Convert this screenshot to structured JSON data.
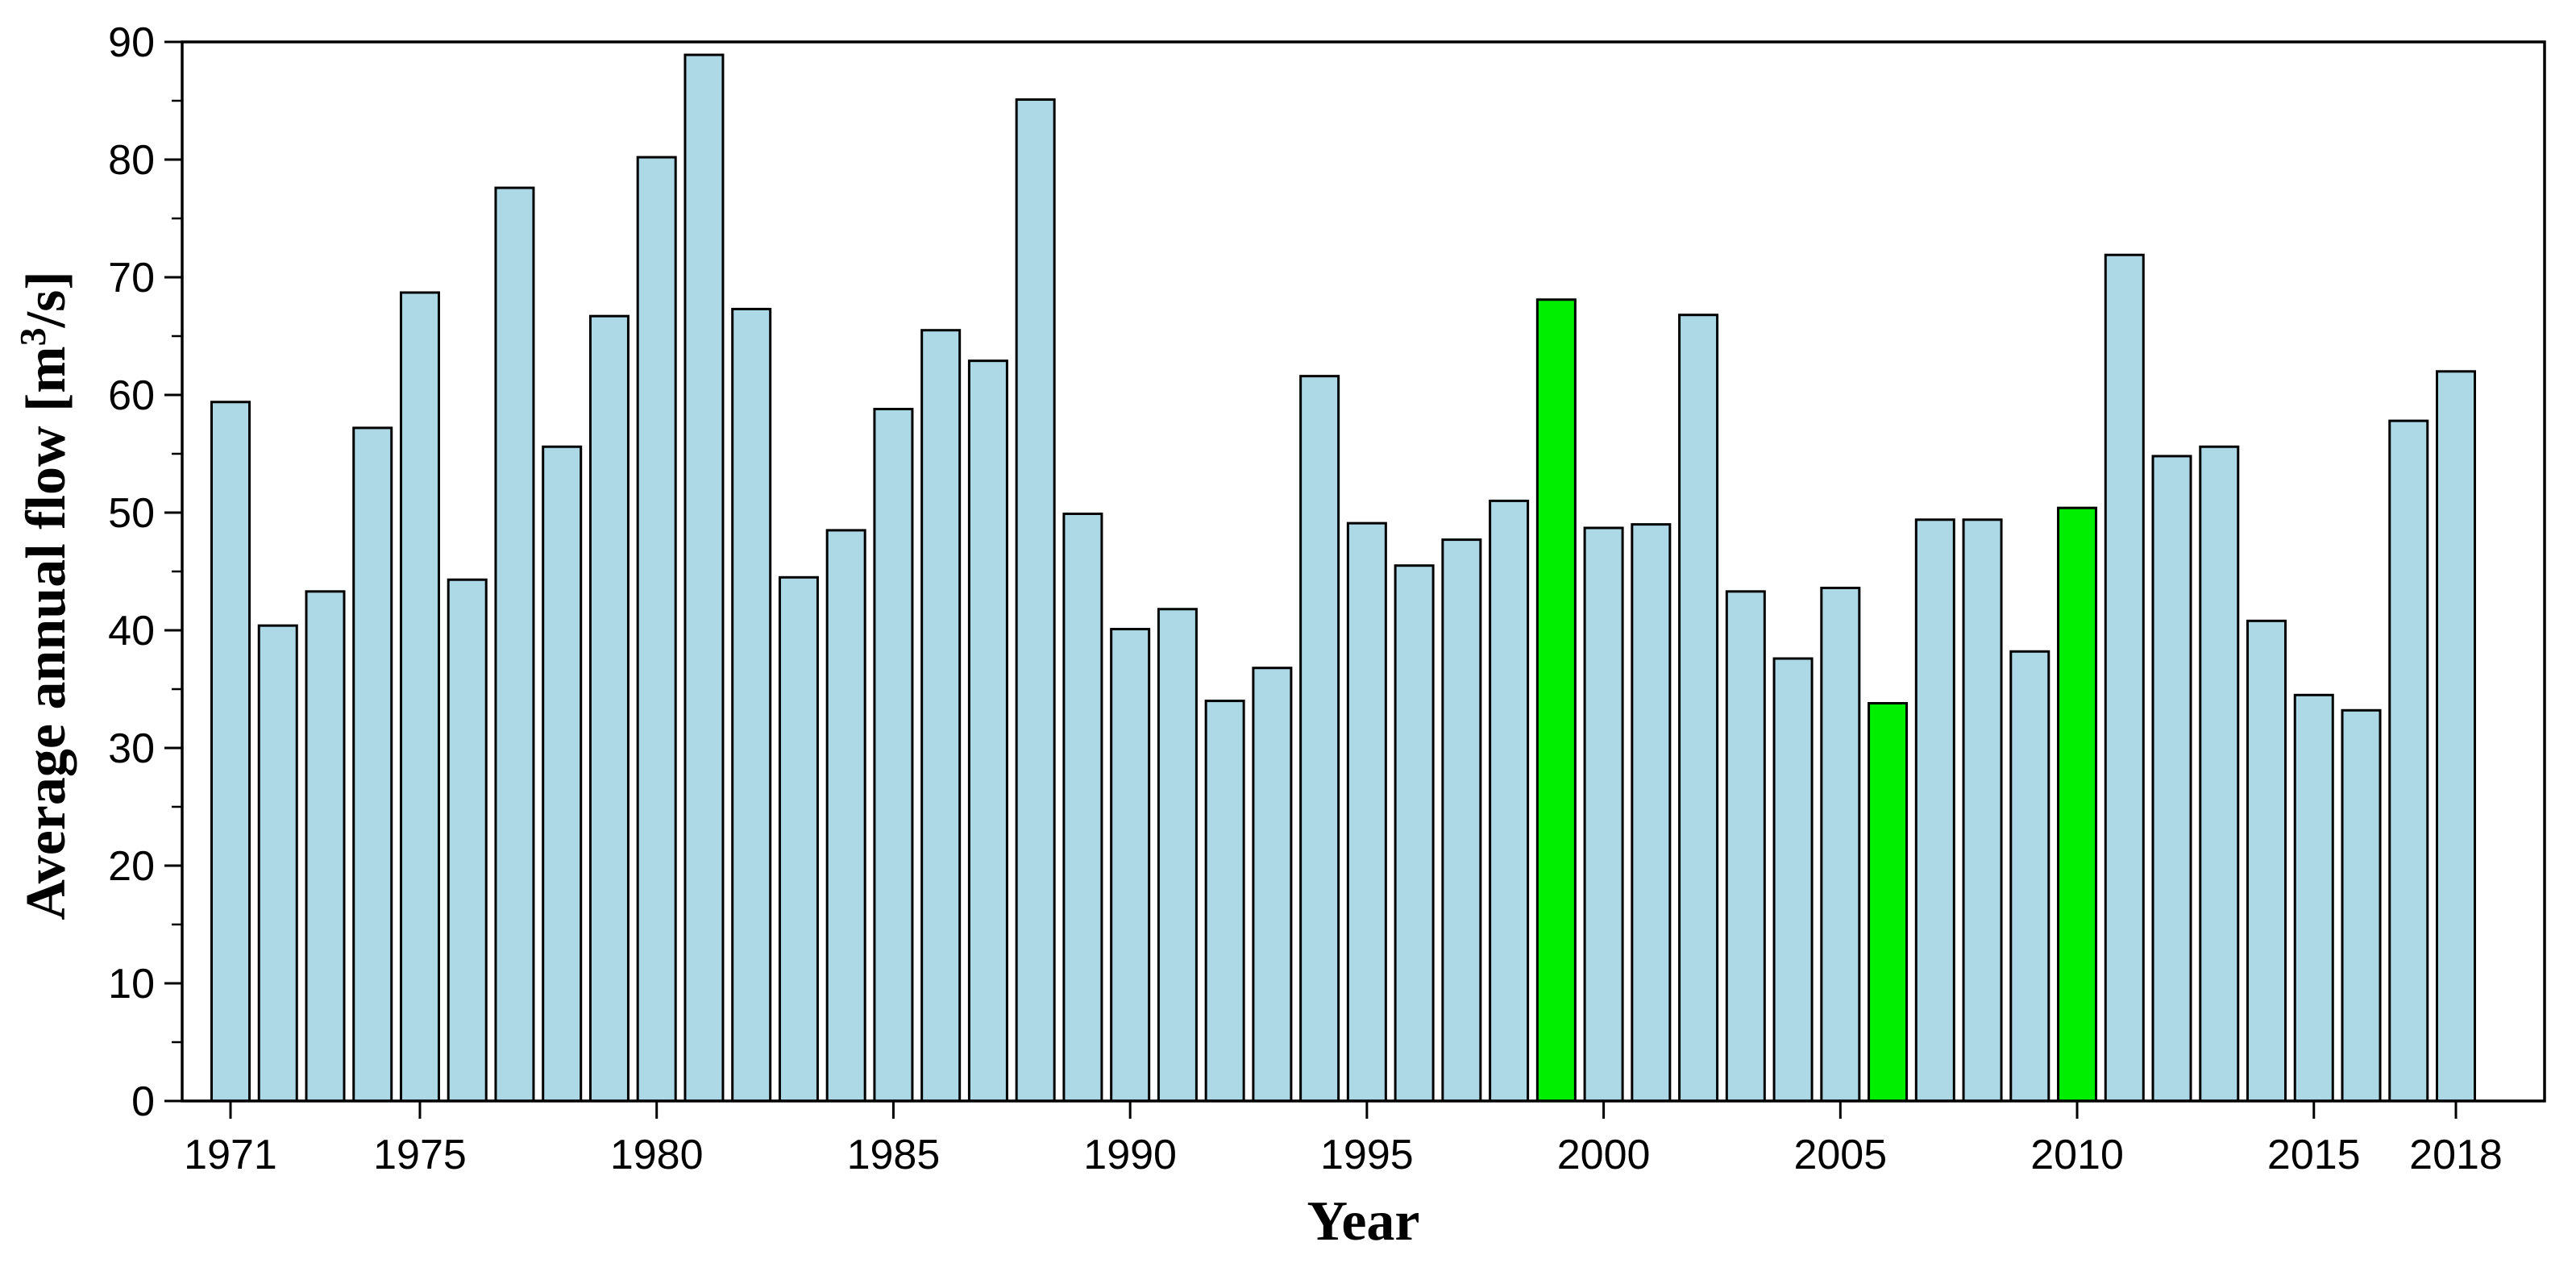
{
  "chart_data": {
    "type": "bar",
    "title": "",
    "xlabel": "Year",
    "ylabel_text": "Average annual flow [m³/s]",
    "ylabel_parts": {
      "prefix": "Average annual flow [m",
      "superscript": "3",
      "suffix": "/s]"
    },
    "categories": [
      1971,
      1972,
      1973,
      1974,
      1975,
      1976,
      1977,
      1978,
      1979,
      1980,
      1981,
      1982,
      1983,
      1984,
      1985,
      1986,
      1987,
      1988,
      1989,
      1990,
      1991,
      1992,
      1993,
      1994,
      1995,
      1996,
      1997,
      1998,
      1999,
      2000,
      2001,
      2002,
      2003,
      2004,
      2005,
      2006,
      2007,
      2008,
      2009,
      2010,
      2011,
      2012,
      2013,
      2014,
      2015,
      2016,
      2017,
      2018
    ],
    "values": [
      59.4,
      40.4,
      43.3,
      57.2,
      68.7,
      44.3,
      77.6,
      55.6,
      66.7,
      80.2,
      88.9,
      67.3,
      44.5,
      48.5,
      58.8,
      65.5,
      62.9,
      85.1,
      49.9,
      40.1,
      41.8,
      34.0,
      36.8,
      61.6,
      49.1,
      45.5,
      47.7,
      51.0,
      68.1,
      48.7,
      49.0,
      66.8,
      43.3,
      37.6,
      43.6,
      33.8,
      49.4,
      49.4,
      38.2,
      50.4,
      71.9,
      54.8,
      55.6,
      40.8,
      34.5,
      33.2,
      57.8,
      62.0
    ],
    "highlighted_years": [
      1999,
      2006,
      2010
    ],
    "x_tick_labels": [
      "1971",
      "1975",
      "1980",
      "1985",
      "1990",
      "1995",
      "2000",
      "2005",
      "2010",
      "2015",
      "2018"
    ],
    "x_tick_years": [
      1971,
      1975,
      1980,
      1985,
      1990,
      1995,
      2000,
      2005,
      2010,
      2015,
      2018
    ],
    "y_ticks": [
      0,
      10,
      20,
      30,
      40,
      50,
      60,
      70,
      80,
      90
    ],
    "y_minor_ticks": [
      5,
      15,
      25,
      35,
      45,
      55,
      65,
      75,
      85
    ],
    "ylim": [
      0,
      90
    ],
    "grid": "off",
    "legend": "none",
    "colors": {
      "bar_fill": "#ADD8E6",
      "highlight_fill": "#00EE00",
      "bar_stroke": "#000000",
      "axis": "#000000",
      "text": "#000000"
    }
  }
}
